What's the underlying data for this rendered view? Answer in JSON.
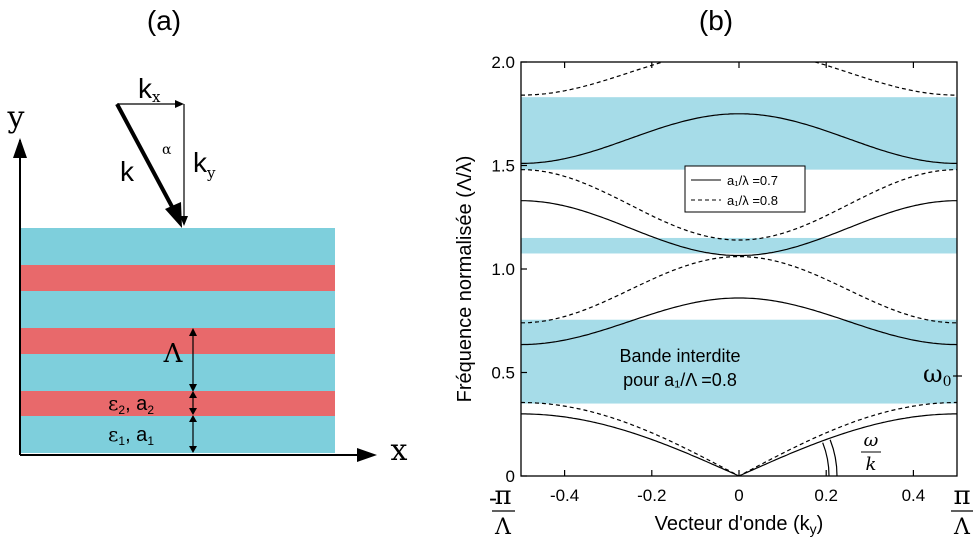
{
  "colors": {
    "cyan": "#7ecfdc",
    "red": "#e8696b",
    "band": "#a6dce8",
    "ink": "#000000"
  },
  "panel_a": {
    "label": "(a)",
    "axis_y": "y",
    "axis_x": "x",
    "k": "k",
    "k_x": "k",
    "k_x_sub": "x",
    "k_y": "k",
    "k_y_sub": "y",
    "alpha": "α",
    "period": "Λ",
    "eps2_symbol": "ε",
    "eps2_sub": "2",
    "eps2_a": ", a",
    "eps2_a_sub": "2",
    "eps1_symbol": "ε",
    "eps1_sub": "1",
    "eps1_a": ", a",
    "eps1_a_sub": "1",
    "layers": [
      "cyan",
      "red",
      "cyan",
      "red",
      "cyan",
      "red",
      "cyan"
    ]
  },
  "panel_b": {
    "label": "(b)",
    "band_text_1": "Bande interdite",
    "band_text_2": "pour a₁/Λ =0.8",
    "omega0": "ω",
    "omega0_sub": "0",
    "omega_num": "ω",
    "omega_den": "k",
    "pi_left_minus": "-",
    "pi_num": "π",
    "pi_den": "Λ"
  },
  "chart_data": {
    "type": "line",
    "xlabel": "Vecteur d'onde (k",
    "xlabel_sub": "y",
    "xlabel_end": ")",
    "ylabel": "Fréquence normalisée (Λ/λ)",
    "xlim": [
      -0.5,
      0.5
    ],
    "ylim": [
      0,
      2.0
    ],
    "xticks": [
      -0.4,
      -0.2,
      0,
      0.2,
      0.4
    ],
    "xtick_labels": [
      "-0.4",
      "-0.2",
      "0",
      "0.2",
      "0.4"
    ],
    "yticks": [
      0,
      0.5,
      1.0,
      1.5,
      2.0
    ],
    "ytick_labels": [
      "0",
      "0.5",
      "1.0",
      "1.5",
      "2.0"
    ],
    "legend": [
      {
        "text": "a₁/λ =0.7",
        "style": "solid"
      },
      {
        "text": "a₁/λ =0.8",
        "style": "dashed"
      }
    ],
    "legend_position": "center",
    "band_gaps": [
      [
        0.35,
        0.755
      ],
      [
        1.075,
        1.15
      ],
      [
        1.48,
        1.83
      ]
    ],
    "series": [
      {
        "style": "solid",
        "bands": [
          {
            "kind": "cos",
            "edge": 0.3,
            "center": 0.0
          },
          {
            "kind": "cos",
            "edge": 0.635,
            "center": 0.86
          },
          {
            "kind": "cos",
            "edge": 1.33,
            "center": 1.065
          },
          {
            "kind": "cos",
            "edge": 1.51,
            "center": 1.75
          }
        ]
      },
      {
        "style": "dashed",
        "bands": [
          {
            "kind": "cos",
            "edge": 0.355,
            "center": 0.0
          },
          {
            "kind": "cos",
            "edge": 0.74,
            "center": 1.06
          },
          {
            "kind": "cos",
            "edge": 1.48,
            "center": 1.14
          },
          {
            "kind": "cos",
            "edge": 1.84,
            "center": 2.06
          }
        ]
      }
    ]
  }
}
